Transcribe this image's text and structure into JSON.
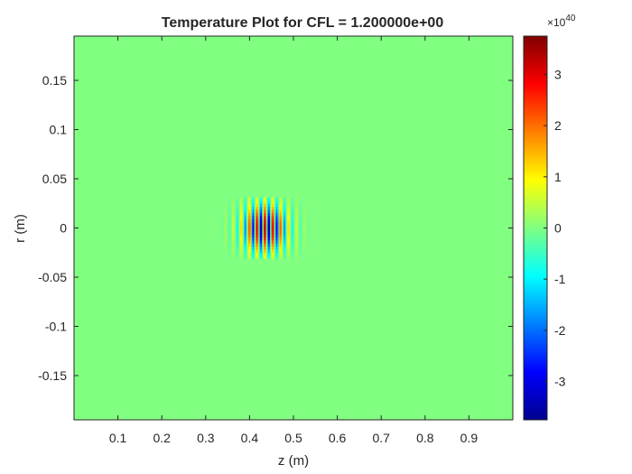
{
  "chart_data": {
    "type": "heatmap",
    "title": "Temperature Plot for CFL = 1.200000e+00",
    "xlabel": "z (m)",
    "ylabel": "r (m)",
    "xlim": [
      0,
      1
    ],
    "ylim": [
      -0.195,
      0.195
    ],
    "x_ticks": [
      0.1,
      0.2,
      0.3,
      0.4,
      0.5,
      0.6,
      0.7,
      0.8,
      0.9
    ],
    "x_tick_labels": [
      "0.1",
      "0.2",
      "0.3",
      "0.4",
      "0.5",
      "0.6",
      "0.7",
      "0.8",
      "0.9"
    ],
    "y_ticks": [
      0.15,
      0.1,
      0.05,
      0,
      -0.05,
      -0.1,
      -0.15
    ],
    "y_tick_labels": [
      "0.15",
      "0.1",
      "0.05",
      "0",
      "-0.05",
      "-0.1",
      "-0.15"
    ],
    "colormap": "jet",
    "color_range": [
      -3.75e+40,
      3.75e+40
    ],
    "colorbar": {
      "ticks": [
        3,
        2,
        1,
        0,
        -1,
        -2,
        -3
      ],
      "tick_labels": [
        "3",
        "2",
        "1",
        "0",
        "-1",
        "-2",
        "-3"
      ],
      "exponent_base": "×10",
      "exponent_power": "40"
    },
    "background_value": 0,
    "feature": {
      "description": "oscillating wave packet",
      "center_z": 0.435,
      "center_r": 0.0,
      "extent_z": [
        0.33,
        0.54
      ],
      "extent_r": [
        -0.027,
        0.027
      ],
      "peak_value": 3.75e+40,
      "wavelength_z": 0.018
    },
    "grid": false
  }
}
